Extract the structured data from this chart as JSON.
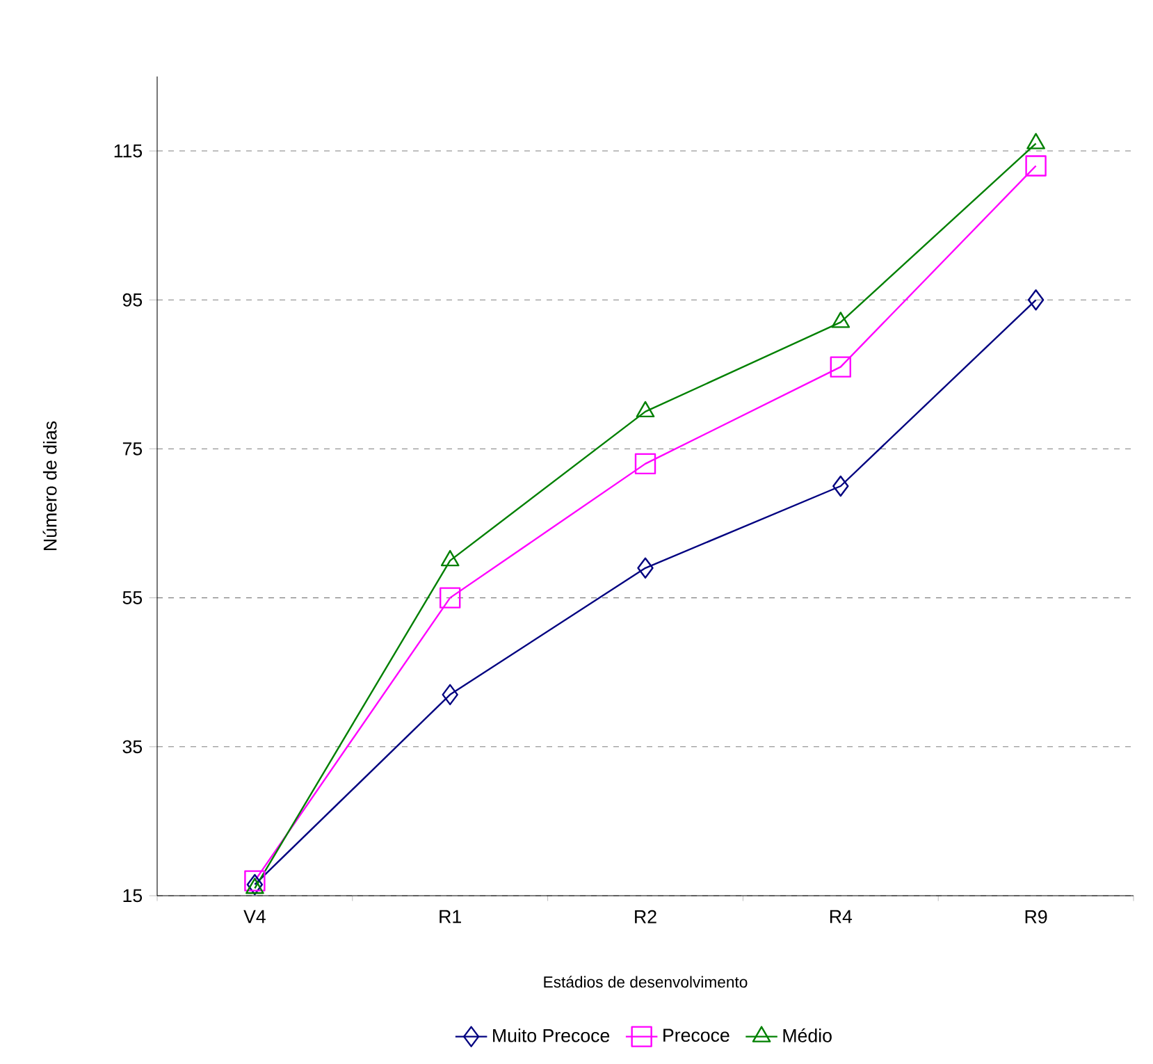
{
  "chart_data": {
    "type": "line",
    "xlabel": "Estádios de desenvolvimento",
    "ylabel": "Número de dias",
    "categories": [
      "V4",
      "R1",
      "R2",
      "R4",
      "R9"
    ],
    "series": [
      {
        "name": "Muito Precoce",
        "color": "#000080",
        "marker": "diamond",
        "values": [
          16.5,
          42,
          59,
          70,
          95
        ]
      },
      {
        "name": "Precoce",
        "color": "#ff00ff",
        "marker": "square",
        "values": [
          17,
          55,
          73,
          86,
          113
        ]
      },
      {
        "name": "Médio",
        "color": "#008000",
        "marker": "triangle",
        "values": [
          16,
          60,
          80,
          92,
          116
        ]
      }
    ],
    "ylim": [
      15,
      125
    ],
    "yticks": [
      15,
      35,
      55,
      75,
      95,
      115
    ],
    "grid": "y",
    "legend": "bottom",
    "line_style": "solid"
  }
}
